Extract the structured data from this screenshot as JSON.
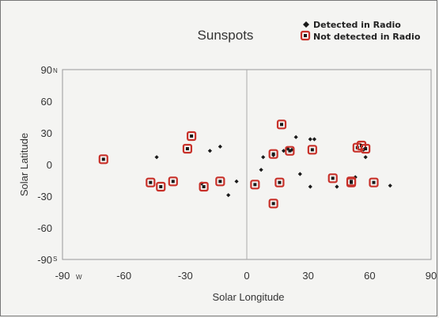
{
  "chart_data": {
    "type": "scatter",
    "title": "Sunspots",
    "xlabel": "Solar Longitude",
    "ylabel": "Solar Latitude",
    "xlim": [
      -90,
      90
    ],
    "ylim": [
      -90,
      90
    ],
    "x_ticks": [
      "-90",
      "-60",
      "-30",
      "0",
      "30",
      "60",
      "90"
    ],
    "y_ticks": [
      "90",
      "60",
      "30",
      "0",
      "-30",
      "-60",
      "-90"
    ],
    "x_min_unit": "W",
    "y_max_unit": "N",
    "y_min_unit": "S",
    "grid": false,
    "legend_position": "top-right",
    "series": [
      {
        "name": "Detected in Radio",
        "marker": "diamond",
        "color": "#1a1a1a",
        "points": [
          [
            -44,
            7
          ],
          [
            -18,
            13
          ],
          [
            -13,
            17
          ],
          [
            -22,
            -18
          ],
          [
            -9,
            -29
          ],
          [
            -5,
            -16
          ],
          [
            7,
            -5
          ],
          [
            8,
            7
          ],
          [
            13,
            9
          ],
          [
            18,
            13
          ],
          [
            20,
            15
          ],
          [
            24,
            26
          ],
          [
            26,
            -9
          ],
          [
            31,
            24
          ],
          [
            33,
            24
          ],
          [
            31,
            -21
          ],
          [
            22,
            14
          ],
          [
            44,
            -21
          ],
          [
            53,
            -12
          ],
          [
            58,
            7
          ],
          [
            57,
            14
          ],
          [
            70,
            -20
          ]
        ]
      },
      {
        "name": "Not detected in Radio",
        "marker": "square",
        "color": "#c8312a",
        "points": [
          [
            -70,
            5
          ],
          [
            -47,
            -17
          ],
          [
            -42,
            -21
          ],
          [
            -36,
            -16
          ],
          [
            -29,
            15
          ],
          [
            -27,
            27
          ],
          [
            -21,
            -21
          ],
          [
            -13,
            -16
          ],
          [
            4,
            -19
          ],
          [
            13,
            10
          ],
          [
            16,
            -17
          ],
          [
            17,
            38
          ],
          [
            13,
            -37
          ],
          [
            21,
            13
          ],
          [
            32,
            14
          ],
          [
            42,
            -13
          ],
          [
            51,
            -17
          ],
          [
            51,
            -16
          ],
          [
            54,
            16
          ],
          [
            56,
            18
          ],
          [
            58,
            15
          ],
          [
            62,
            -17
          ]
        ]
      }
    ]
  }
}
